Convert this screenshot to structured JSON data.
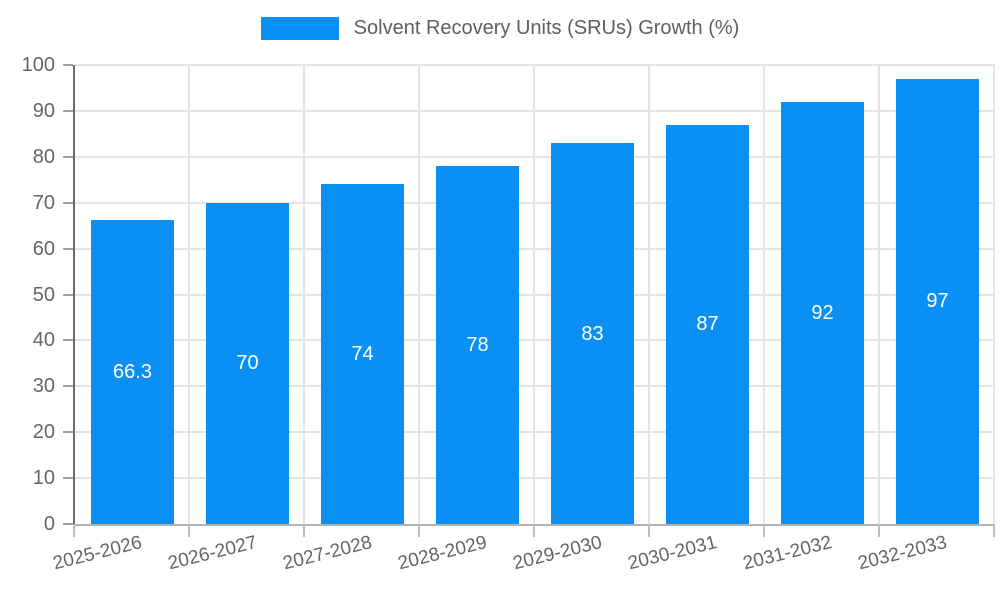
{
  "legend": {
    "items": [
      {
        "label": "Solvent Recovery Units (SRUs) Growth (%)",
        "color": "#0a90f5"
      }
    ],
    "position": "top"
  },
  "chart_data": {
    "type": "bar",
    "title": "",
    "xlabel": "",
    "ylabel": "",
    "categories": [
      "2025-2026",
      "2026-2027",
      "2027-2028",
      "2028-2029",
      "2029-2030",
      "2030-2031",
      "2031-2032",
      "2032-2033"
    ],
    "series": [
      {
        "name": "Solvent Recovery Units (SRUs) Growth (%)",
        "values": [
          66.3,
          70,
          74,
          78,
          83,
          87,
          92,
          97
        ],
        "value_labels": [
          "66.3",
          "70",
          "74",
          "78",
          "83",
          "87",
          "92",
          "97"
        ],
        "color": "#0a90f5"
      }
    ],
    "ylim": [
      0,
      100
    ],
    "ytick_step": 10,
    "ytick_labels": [
      "0",
      "10",
      "20",
      "30",
      "40",
      "50",
      "60",
      "70",
      "80",
      "90",
      "100"
    ],
    "grid": true,
    "legend_position": "top",
    "value_label_color": "#ffffff",
    "value_label_placement": "inside-center"
  },
  "colors": {
    "bar": "#0a90f5",
    "value_label": "#ffffff",
    "tick_label": "#666666",
    "legend_text": "#5f5f5f",
    "background": "#ffffff"
  }
}
